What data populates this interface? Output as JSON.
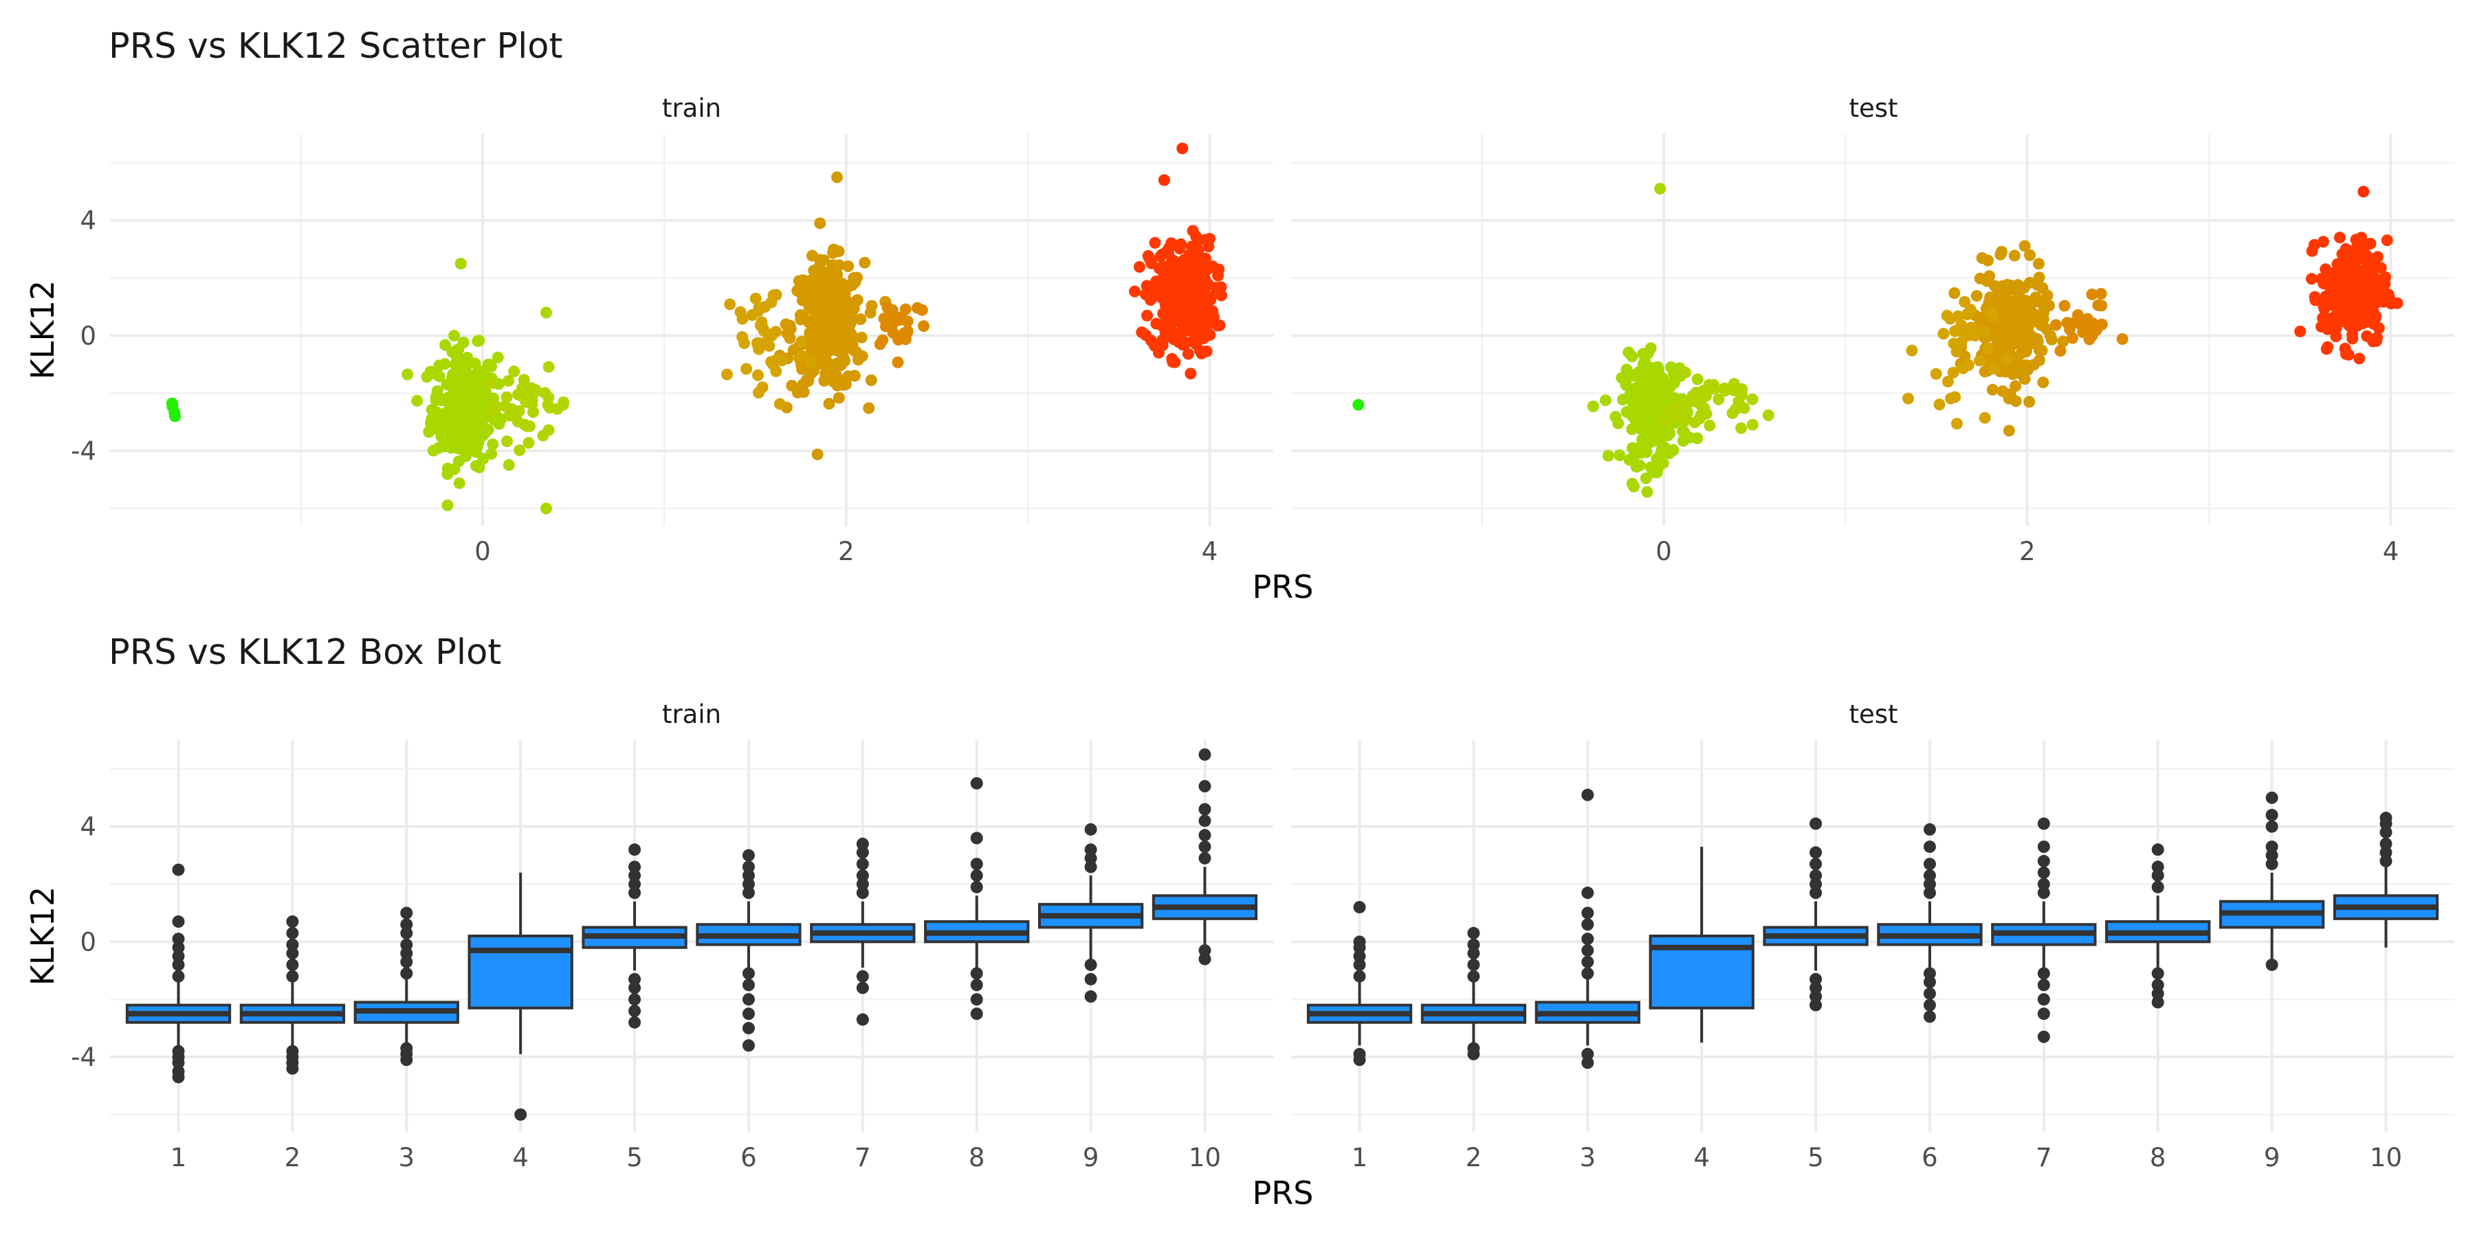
{
  "chart_data": [
    {
      "type": "scatter",
      "title": "PRS vs KLK12 Scatter Plot",
      "xlabel": "PRS",
      "ylabel": "KLK12",
      "xlim": [
        -2.05,
        4.35
      ],
      "ylim": [
        -6.6,
        7.0
      ],
      "x_ticks": [
        0,
        2,
        4
      ],
      "x_tick_labels": [
        "0",
        "2",
        "4"
      ],
      "y_ticks": [
        -4,
        0,
        4
      ],
      "y_tick_labels": [
        "-4",
        "0",
        "4"
      ],
      "grid": true,
      "legend": "none",
      "color_scale": {
        "low": "#00ff00",
        "mid": "#d4a000",
        "high": "#ff2000"
      },
      "facets": [
        {
          "label": "train",
          "clusters": [
            {
              "x_center": -1.7,
              "x_spread": 0.02,
              "y_center": -2.7,
              "y_spread": 0.25,
              "n": 4,
              "color": "#22f000"
            },
            {
              "x_center": -0.1,
              "x_spread": 0.09,
              "y_center": -2.5,
              "y_spread": 1.0,
              "n": 260,
              "color": "#a8d800"
            },
            {
              "x_center": 0.25,
              "x_spread": 0.12,
              "y_center": -2.4,
              "y_spread": 0.6,
              "n": 40,
              "color": "#b4d400"
            },
            {
              "x_center": 1.9,
              "x_spread": 0.1,
              "y_center": 0.3,
              "y_spread": 1.1,
              "n": 300,
              "color": "#d49a00"
            },
            {
              "x_center": 1.55,
              "x_spread": 0.12,
              "y_center": -0.2,
              "y_spread": 1.2,
              "n": 40,
              "color": "#d6a400"
            },
            {
              "x_center": 2.3,
              "x_spread": 0.08,
              "y_center": 0.5,
              "y_spread": 0.5,
              "n": 25,
              "color": "#de8a00"
            },
            {
              "x_center": 3.85,
              "x_spread": 0.09,
              "y_center": 1.3,
              "y_spread": 1.0,
              "n": 280,
              "color": "#ff3800"
            }
          ],
          "outliers": [
            {
              "x": -0.12,
              "y": 2.5
            },
            {
              "x": 0.35,
              "y": -6.0
            },
            {
              "x": 0.35,
              "y": 0.8
            },
            {
              "x": 1.95,
              "y": 5.5
            },
            {
              "x": 3.85,
              "y": 6.5
            },
            {
              "x": 3.75,
              "y": 5.4
            }
          ]
        },
        {
          "label": "test",
          "clusters": [
            {
              "x_center": -1.68,
              "x_spread": 0.0,
              "y_center": -2.4,
              "y_spread": 0.0,
              "n": 1,
              "color": "#22f000"
            },
            {
              "x_center": -0.05,
              "x_spread": 0.09,
              "y_center": -2.6,
              "y_spread": 0.9,
              "n": 220,
              "color": "#a8d800"
            },
            {
              "x_center": 0.25,
              "x_spread": 0.12,
              "y_center": -2.4,
              "y_spread": 0.5,
              "n": 40,
              "color": "#b4d400"
            },
            {
              "x_center": 1.9,
              "x_spread": 0.1,
              "y_center": 0.2,
              "y_spread": 1.0,
              "n": 260,
              "color": "#d49a00"
            },
            {
              "x_center": 1.6,
              "x_spread": 0.1,
              "y_center": -0.5,
              "y_spread": 1.1,
              "n": 35,
              "color": "#d6a400"
            },
            {
              "x_center": 2.3,
              "x_spread": 0.08,
              "y_center": 0.4,
              "y_spread": 0.5,
              "n": 25,
              "color": "#de8a00"
            },
            {
              "x_center": 3.8,
              "x_spread": 0.09,
              "y_center": 1.5,
              "y_spread": 0.9,
              "n": 250,
              "color": "#ff3800"
            }
          ],
          "outliers": [
            {
              "x": -0.02,
              "y": 5.1
            },
            {
              "x": 1.9,
              "y": -3.3
            },
            {
              "x": 3.85,
              "y": 5.0
            }
          ]
        }
      ]
    },
    {
      "type": "box",
      "title": "PRS vs KLK12 Box Plot",
      "xlabel": "PRS",
      "ylabel": "KLK12",
      "categories": [
        "1",
        "2",
        "3",
        "4",
        "5",
        "6",
        "7",
        "8",
        "9",
        "10"
      ],
      "ylim": [
        -6.6,
        7.0
      ],
      "y_ticks": [
        -4,
        0,
        4
      ],
      "y_tick_labels": [
        "-4",
        "0",
        "4"
      ],
      "grid": true,
      "legend": "none",
      "box_fill": "#1e90ff",
      "box_stroke": "#333333",
      "facets": [
        {
          "label": "train",
          "boxes": [
            {
              "q1": -2.8,
              "median": -2.5,
              "q3": -2.2,
              "lower": -3.6,
              "upper": -1.4,
              "outliers": [
                -4.7,
                -4.5,
                -4.2,
                -4.0,
                -3.8,
                -1.2,
                -0.8,
                -0.5,
                -0.2,
                0.1,
                0.7,
                2.5
              ]
            },
            {
              "q1": -2.8,
              "median": -2.5,
              "q3": -2.2,
              "lower": -3.6,
              "upper": -1.4,
              "outliers": [
                -4.4,
                -4.2,
                -4.0,
                -3.8,
                -1.2,
                -0.8,
                -0.4,
                -0.1,
                0.3,
                0.7
              ]
            },
            {
              "q1": -2.8,
              "median": -2.4,
              "q3": -2.1,
              "lower": -3.5,
              "upper": -1.3,
              "outliers": [
                -4.1,
                -3.9,
                -3.7,
                -1.1,
                -0.7,
                -0.4,
                -0.1,
                0.3,
                0.6,
                1.0
              ]
            },
            {
              "q1": -2.3,
              "median": -0.3,
              "q3": 0.2,
              "lower": -3.9,
              "upper": 2.4,
              "outliers": [
                -6.0
              ]
            },
            {
              "q1": -0.2,
              "median": 0.2,
              "q3": 0.5,
              "lower": -1.0,
              "upper": 1.4,
              "outliers": [
                -2.8,
                -2.4,
                -2.0,
                -1.6,
                -1.3,
                1.7,
                2.0,
                2.3,
                2.6,
                3.2
              ]
            },
            {
              "q1": -0.1,
              "median": 0.2,
              "q3": 0.6,
              "lower": -0.9,
              "upper": 1.4,
              "outliers": [
                -3.6,
                -3.0,
                -2.5,
                -2.0,
                -1.5,
                -1.1,
                1.7,
                2.0,
                2.3,
                2.6,
                3.0
              ]
            },
            {
              "q1": 0.0,
              "median": 0.3,
              "q3": 0.6,
              "lower": -0.9,
              "upper": 1.4,
              "outliers": [
                -2.7,
                -1.6,
                -1.2,
                1.7,
                2.0,
                2.3,
                2.7,
                3.1,
                3.4
              ]
            },
            {
              "q1": 0.0,
              "median": 0.3,
              "q3": 0.7,
              "lower": -0.9,
              "upper": 1.6,
              "outliers": [
                -2.5,
                -2.0,
                -1.5,
                -1.1,
                1.9,
                2.3,
                2.7,
                3.6,
                5.5
              ]
            },
            {
              "q1": 0.5,
              "median": 0.9,
              "q3": 1.3,
              "lower": -0.6,
              "upper": 2.3,
              "outliers": [
                -1.9,
                -1.3,
                -0.8,
                2.6,
                2.9,
                3.2,
                3.9
              ]
            },
            {
              "q1": 0.8,
              "median": 1.2,
              "q3": 1.6,
              "lower": -0.2,
              "upper": 2.6,
              "outliers": [
                -0.6,
                -0.3,
                2.9,
                3.3,
                3.7,
                4.2,
                4.6,
                5.4,
                6.5
              ]
            }
          ]
        },
        {
          "label": "test",
          "boxes": [
            {
              "q1": -2.8,
              "median": -2.5,
              "q3": -2.2,
              "lower": -3.6,
              "upper": -1.4,
              "outliers": [
                -4.1,
                -3.9,
                -1.2,
                -0.8,
                -0.5,
                -0.2,
                0.0,
                1.2
              ]
            },
            {
              "q1": -2.8,
              "median": -2.5,
              "q3": -2.2,
              "lower": -3.6,
              "upper": -1.4,
              "outliers": [
                -3.9,
                -3.7,
                -1.2,
                -0.8,
                -0.4,
                -0.1,
                0.3
              ]
            },
            {
              "q1": -2.8,
              "median": -2.5,
              "q3": -2.1,
              "lower": -3.6,
              "upper": -1.3,
              "outliers": [
                -4.2,
                -3.9,
                -1.1,
                -0.7,
                -0.3,
                0.1,
                0.6,
                1.0,
                1.7,
                5.1
              ]
            },
            {
              "q1": -2.3,
              "median": -0.2,
              "q3": 0.2,
              "lower": -3.5,
              "upper": 3.3,
              "outliers": []
            },
            {
              "q1": -0.1,
              "median": 0.2,
              "q3": 0.5,
              "lower": -1.0,
              "upper": 1.4,
              "outliers": [
                -2.2,
                -1.9,
                -1.6,
                -1.3,
                1.7,
                2.0,
                2.3,
                2.7,
                3.1,
                4.1
              ]
            },
            {
              "q1": -0.1,
              "median": 0.2,
              "q3": 0.6,
              "lower": -0.9,
              "upper": 1.4,
              "outliers": [
                -2.6,
                -2.2,
                -1.8,
                -1.4,
                -1.1,
                1.7,
                2.0,
                2.3,
                2.7,
                3.3,
                3.9
              ]
            },
            {
              "q1": -0.1,
              "median": 0.3,
              "q3": 0.6,
              "lower": -0.9,
              "upper": 1.4,
              "outliers": [
                -3.3,
                -2.5,
                -2.0,
                -1.5,
                -1.1,
                1.7,
                2.0,
                2.4,
                2.8,
                3.3,
                4.1
              ]
            },
            {
              "q1": 0.0,
              "median": 0.3,
              "q3": 0.7,
              "lower": -0.9,
              "upper": 1.6,
              "outliers": [
                -2.1,
                -1.8,
                -1.5,
                -1.1,
                1.9,
                2.3,
                2.6,
                3.2
              ]
            },
            {
              "q1": 0.5,
              "median": 1.0,
              "q3": 1.4,
              "lower": -0.6,
              "upper": 2.4,
              "outliers": [
                -0.8,
                2.7,
                3.0,
                3.3,
                4.0,
                4.4,
                5.0
              ]
            },
            {
              "q1": 0.8,
              "median": 1.2,
              "q3": 1.6,
              "lower": -0.2,
              "upper": 2.6,
              "outliers": [
                2.8,
                3.1,
                3.4,
                3.8,
                4.1,
                4.3
              ]
            }
          ]
        }
      ]
    }
  ]
}
